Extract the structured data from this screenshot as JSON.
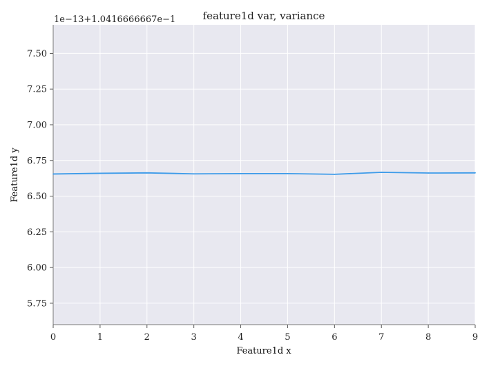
{
  "chart_data": {
    "type": "line",
    "title": "feature1d var, variance",
    "xlabel": "Feature1d x",
    "ylabel": "Feature1d y",
    "offset_text": "1e−13+1.0416666667e−1",
    "xlim": [
      0,
      9
    ],
    "ylim": [
      5.6,
      7.7
    ],
    "x_ticks": [
      0,
      1,
      2,
      3,
      4,
      5,
      6,
      7,
      8,
      9
    ],
    "y_ticks": [
      5.75,
      6.0,
      6.25,
      6.5,
      6.75,
      7.0,
      7.25,
      7.5
    ],
    "y_tick_labels": [
      "5.75",
      "6.00",
      "6.25",
      "6.50",
      "6.75",
      "7.00",
      "7.25",
      "7.50"
    ],
    "grid": true,
    "background_color": "#e8e8f0",
    "series": [
      {
        "color": "#3d9be9",
        "x": [
          0,
          1,
          2,
          3,
          4,
          5,
          6,
          7,
          8,
          9
        ],
        "y": [
          6.655,
          6.66,
          6.663,
          6.656,
          6.658,
          6.658,
          6.653,
          6.667,
          6.662,
          6.663
        ]
      }
    ]
  }
}
